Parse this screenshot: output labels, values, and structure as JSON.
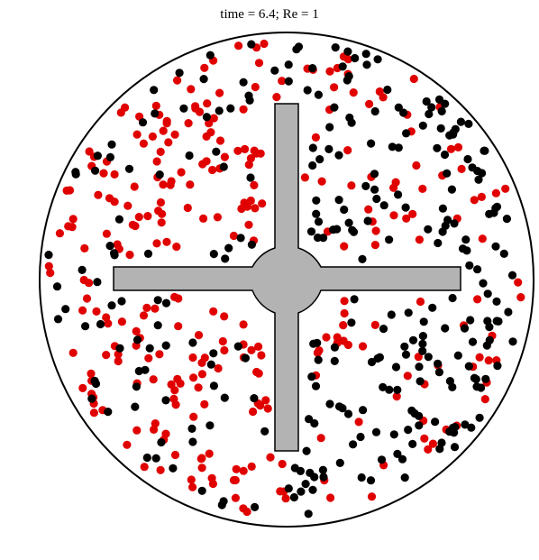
{
  "title": "time = 6.4; Re = 1",
  "colors": {
    "boundary": "#000000",
    "stirrer_fill": "#b3b3b3",
    "stirrer_stroke": "#000000",
    "particle_red": "#e00000",
    "particle_black": "#000000"
  },
  "particle_counts": {
    "red": 290,
    "black": 290
  }
}
